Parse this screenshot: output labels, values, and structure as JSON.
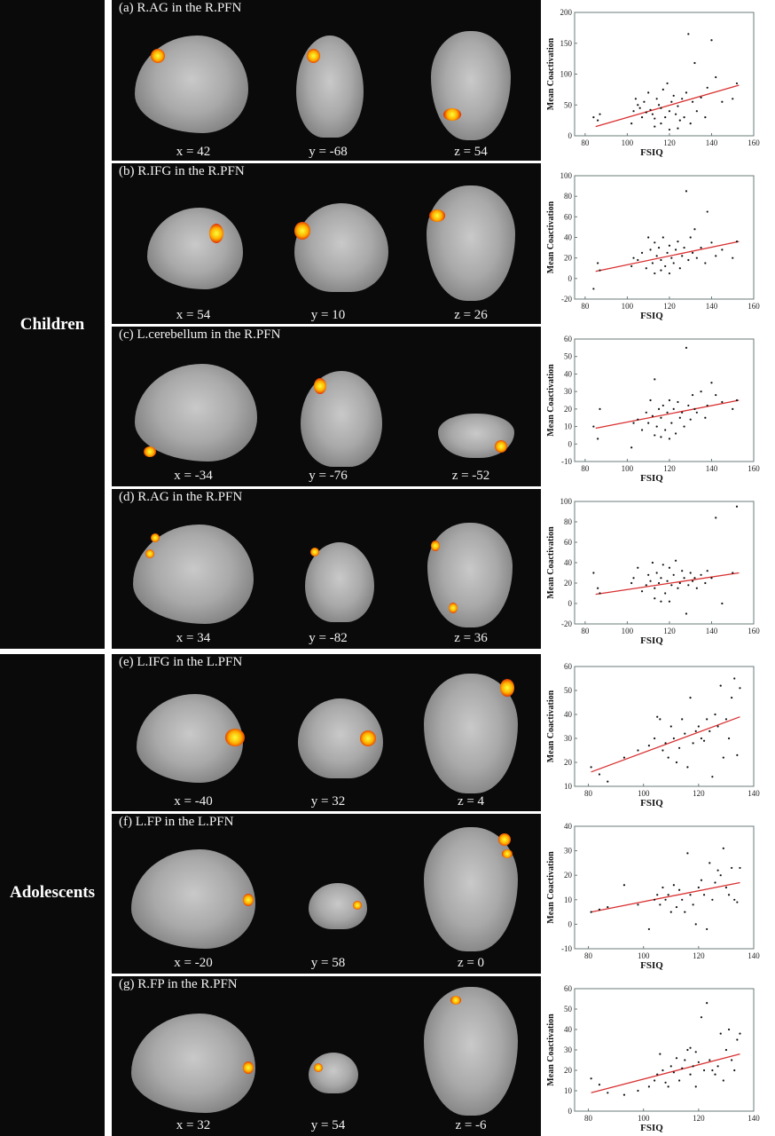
{
  "groups": [
    {
      "label": "Children"
    },
    {
      "label": "Adolescents"
    }
  ],
  "panels": [
    {
      "title": "(a) R.AG in the R.PFN",
      "coords": [
        "x = 42",
        "y = -68",
        "z = 54"
      ]
    },
    {
      "title": "(b) R.IFG in the R.PFN",
      "coords": [
        "x = 54",
        "y = 10",
        "z = 26"
      ]
    },
    {
      "title": "(c) L.cerebellum in the R.PFN",
      "coords": [
        "x = -34",
        "y = -76",
        "z = -52"
      ]
    },
    {
      "title": "(d) R.AG in the R.PFN",
      "coords": [
        "x = 34",
        "y = -82",
        "z = 36"
      ]
    },
    {
      "title": "(e) L.IFG in the L.PFN",
      "coords": [
        "x = -40",
        "y = 32",
        "z = 4"
      ]
    },
    {
      "title": "(f) L.FP in the L.PFN",
      "coords": [
        "x = -20",
        "y = 58",
        "z = 0"
      ]
    },
    {
      "title": "(g) R.FP in the R.PFN",
      "coords": [
        "x = 32",
        "y = 54",
        "z = -6"
      ]
    }
  ],
  "colors": {
    "line": "#d93030",
    "points": "#111111",
    "frame": "#6a7a7a"
  },
  "chart_data": [
    {
      "type": "scatter",
      "xlabel": "FSIQ",
      "ylabel": "Mean Coactivation",
      "xlim": [
        75,
        160
      ],
      "ylim": [
        0,
        200
      ],
      "xticks": [
        80,
        100,
        120,
        140,
        160
      ],
      "yticks": [
        0,
        50,
        100,
        150,
        200
      ],
      "fit": [
        [
          85,
          15
        ],
        [
          153,
          82
        ]
      ],
      "points": [
        [
          84,
          30
        ],
        [
          86,
          25
        ],
        [
          87,
          35
        ],
        [
          102,
          20
        ],
        [
          103,
          40
        ],
        [
          104,
          60
        ],
        [
          105,
          50
        ],
        [
          106,
          45
        ],
        [
          107,
          30
        ],
        [
          108,
          55
        ],
        [
          109,
          38
        ],
        [
          110,
          70
        ],
        [
          111,
          42
        ],
        [
          112,
          35
        ],
        [
          113,
          28
        ],
        [
          114,
          60
        ],
        [
          115,
          50
        ],
        [
          116,
          45
        ],
        [
          117,
          75
        ],
        [
          118,
          30
        ],
        [
          119,
          85
        ],
        [
          120,
          40
        ],
        [
          121,
          55
        ],
        [
          122,
          65
        ],
        [
          123,
          35
        ],
        [
          124,
          48
        ],
        [
          125,
          25
        ],
        [
          126,
          60
        ],
        [
          127,
          30
        ],
        [
          128,
          70
        ],
        [
          129,
          165
        ],
        [
          130,
          20
        ],
        [
          131,
          55
        ],
        [
          132,
          118
        ],
        [
          133,
          40
        ],
        [
          135,
          62
        ],
        [
          137,
          30
        ],
        [
          138,
          78
        ],
        [
          140,
          155
        ],
        [
          142,
          95
        ],
        [
          145,
          55
        ],
        [
          150,
          60
        ],
        [
          152,
          85
        ],
        [
          113,
          15
        ],
        [
          116,
          20
        ],
        [
          120,
          10
        ],
        [
          124,
          12
        ]
      ]
    },
    {
      "type": "scatter",
      "xlabel": "FSIQ",
      "ylabel": "Mean Coactivation",
      "xlim": [
        75,
        160
      ],
      "ylim": [
        -20,
        100
      ],
      "xticks": [
        80,
        100,
        120,
        140,
        160
      ],
      "yticks": [
        -20,
        0,
        20,
        40,
        60,
        80,
        100
      ],
      "fit": [
        [
          85,
          7
        ],
        [
          153,
          36
        ]
      ],
      "points": [
        [
          84,
          -10
        ],
        [
          86,
          15
        ],
        [
          87,
          8
        ],
        [
          102,
          12
        ],
        [
          103,
          20
        ],
        [
          105,
          18
        ],
        [
          107,
          25
        ],
        [
          109,
          10
        ],
        [
          110,
          40
        ],
        [
          111,
          28
        ],
        [
          112,
          15
        ],
        [
          113,
          35
        ],
        [
          114,
          22
        ],
        [
          115,
          30
        ],
        [
          116,
          18
        ],
        [
          117,
          40
        ],
        [
          118,
          12
        ],
        [
          119,
          25
        ],
        [
          120,
          32
        ],
        [
          121,
          20
        ],
        [
          122,
          15
        ],
        [
          123,
          28
        ],
        [
          124,
          36
        ],
        [
          125,
          10
        ],
        [
          126,
          22
        ],
        [
          127,
          30
        ],
        [
          128,
          85
        ],
        [
          129,
          18
        ],
        [
          130,
          40
        ],
        [
          131,
          25
        ],
        [
          132,
          48
        ],
        [
          133,
          20
        ],
        [
          135,
          30
        ],
        [
          137,
          15
        ],
        [
          138,
          65
        ],
        [
          140,
          35
        ],
        [
          142,
          22
        ],
        [
          145,
          28
        ],
        [
          150,
          20
        ],
        [
          152,
          36
        ],
        [
          113,
          5
        ],
        [
          116,
          8
        ],
        [
          120,
          5
        ]
      ]
    },
    {
      "type": "scatter",
      "xlabel": "FSIQ",
      "ylabel": "Mean Coactivation",
      "xlim": [
        75,
        160
      ],
      "ylim": [
        -10,
        60
      ],
      "xticks": [
        80,
        100,
        120,
        140,
        160
      ],
      "yticks": [
        -10,
        0,
        10,
        20,
        30,
        40,
        50,
        60
      ],
      "fit": [
        [
          85,
          9
        ],
        [
          153,
          25
        ]
      ],
      "points": [
        [
          84,
          10
        ],
        [
          86,
          3
        ],
        [
          87,
          20
        ],
        [
          102,
          -2
        ],
        [
          103,
          12
        ],
        [
          105,
          14
        ],
        [
          107,
          8
        ],
        [
          109,
          18
        ],
        [
          110,
          12
        ],
        [
          111,
          25
        ],
        [
          112,
          16
        ],
        [
          113,
          37
        ],
        [
          114,
          10
        ],
        [
          115,
          20
        ],
        [
          116,
          15
        ],
        [
          117,
          22
        ],
        [
          118,
          8
        ],
        [
          119,
          18
        ],
        [
          120,
          25
        ],
        [
          121,
          12
        ],
        [
          122,
          20
        ],
        [
          123,
          6
        ],
        [
          124,
          24
        ],
        [
          125,
          15
        ],
        [
          126,
          18
        ],
        [
          127,
          10
        ],
        [
          128,
          55
        ],
        [
          129,
          22
        ],
        [
          130,
          14
        ],
        [
          131,
          28
        ],
        [
          132,
          20
        ],
        [
          133,
          18
        ],
        [
          135,
          30
        ],
        [
          137,
          15
        ],
        [
          138,
          22
        ],
        [
          140,
          35
        ],
        [
          142,
          28
        ],
        [
          145,
          24
        ],
        [
          150,
          20
        ],
        [
          152,
          25
        ],
        [
          113,
          5
        ],
        [
          116,
          4
        ],
        [
          120,
          3
        ]
      ]
    },
    {
      "type": "scatter",
      "xlabel": "FSIQ",
      "ylabel": "Mean Coactivation",
      "xlim": [
        75,
        160
      ],
      "ylim": [
        -20,
        100
      ],
      "xticks": [
        80,
        100,
        120,
        140,
        160
      ],
      "yticks": [
        -20,
        0,
        20,
        40,
        60,
        80,
        100
      ],
      "fit": [
        [
          85,
          9
        ],
        [
          153,
          30
        ]
      ],
      "points": [
        [
          84,
          30
        ],
        [
          86,
          15
        ],
        [
          87,
          10
        ],
        [
          102,
          20
        ],
        [
          103,
          25
        ],
        [
          105,
          35
        ],
        [
          107,
          12
        ],
        [
          109,
          18
        ],
        [
          110,
          28
        ],
        [
          111,
          22
        ],
        [
          112,
          40
        ],
        [
          113,
          15
        ],
        [
          114,
          30
        ],
        [
          115,
          20
        ],
        [
          116,
          25
        ],
        [
          117,
          38
        ],
        [
          118,
          10
        ],
        [
          119,
          22
        ],
        [
          120,
          35
        ],
        [
          121,
          18
        ],
        [
          122,
          28
        ],
        [
          123,
          42
        ],
        [
          124,
          15
        ],
        [
          125,
          20
        ],
        [
          126,
          32
        ],
        [
          127,
          25
        ],
        [
          128,
          -10
        ],
        [
          129,
          18
        ],
        [
          130,
          30
        ],
        [
          131,
          22
        ],
        [
          132,
          25
        ],
        [
          133,
          15
        ],
        [
          135,
          28
        ],
        [
          137,
          20
        ],
        [
          138,
          32
        ],
        [
          140,
          25
        ],
        [
          142,
          84
        ],
        [
          145,
          0
        ],
        [
          150,
          30
        ],
        [
          152,
          95
        ],
        [
          113,
          5
        ],
        [
          116,
          2
        ],
        [
          120,
          2
        ]
      ]
    },
    {
      "type": "scatter",
      "xlabel": "FSIQ",
      "ylabel": "Mean Coactivation",
      "xlim": [
        75,
        140
      ],
      "ylim": [
        10,
        60
      ],
      "xticks": [
        80,
        100,
        120,
        140
      ],
      "yticks": [
        10,
        20,
        30,
        40,
        50,
        60
      ],
      "fit": [
        [
          81,
          16
        ],
        [
          135,
          39
        ]
      ],
      "points": [
        [
          81,
          18
        ],
        [
          84,
          15
        ],
        [
          87,
          12
        ],
        [
          93,
          22
        ],
        [
          98,
          25
        ],
        [
          102,
          27
        ],
        [
          104,
          30
        ],
        [
          105,
          39
        ],
        [
          106,
          38
        ],
        [
          107,
          25
        ],
        [
          108,
          28
        ],
        [
          109,
          22
        ],
        [
          110,
          35
        ],
        [
          111,
          30
        ],
        [
          112,
          20
        ],
        [
          113,
          26
        ],
        [
          114,
          38
        ],
        [
          115,
          32
        ],
        [
          116,
          18
        ],
        [
          117,
          47
        ],
        [
          118,
          28
        ],
        [
          119,
          33
        ],
        [
          120,
          35
        ],
        [
          121,
          30
        ],
        [
          122,
          29
        ],
        [
          123,
          38
        ],
        [
          124,
          33
        ],
        [
          125,
          14
        ],
        [
          126,
          40
        ],
        [
          127,
          35
        ],
        [
          128,
          52
        ],
        [
          129,
          22
        ],
        [
          130,
          38
        ],
        [
          131,
          30
        ],
        [
          132,
          47
        ],
        [
          133,
          55
        ],
        [
          134,
          23
        ],
        [
          135,
          51
        ]
      ]
    },
    {
      "type": "scatter",
      "xlabel": "FSIQ",
      "ylabel": "Mean Coactivation",
      "xlim": [
        75,
        140
      ],
      "ylim": [
        -10,
        40
      ],
      "xticks": [
        80,
        100,
        120,
        140
      ],
      "yticks": [
        -10,
        0,
        10,
        20,
        30,
        40
      ],
      "fit": [
        [
          81,
          5
        ],
        [
          135,
          17
        ]
      ],
      "points": [
        [
          81,
          5
        ],
        [
          84,
          6
        ],
        [
          87,
          7
        ],
        [
          93,
          16
        ],
        [
          98,
          8
        ],
        [
          102,
          -2
        ],
        [
          104,
          10
        ],
        [
          105,
          12
        ],
        [
          106,
          8
        ],
        [
          107,
          15
        ],
        [
          108,
          10
        ],
        [
          109,
          12
        ],
        [
          110,
          5
        ],
        [
          111,
          16
        ],
        [
          112,
          7
        ],
        [
          113,
          14
        ],
        [
          114,
          10
        ],
        [
          115,
          5
        ],
        [
          116,
          29
        ],
        [
          117,
          12
        ],
        [
          118,
          8
        ],
        [
          119,
          0
        ],
        [
          120,
          15
        ],
        [
          121,
          18
        ],
        [
          122,
          12
        ],
        [
          123,
          -2
        ],
        [
          124,
          25
        ],
        [
          125,
          10
        ],
        [
          126,
          17
        ],
        [
          127,
          22
        ],
        [
          128,
          20
        ],
        [
          129,
          31
        ],
        [
          130,
          15
        ],
        [
          131,
          12
        ],
        [
          132,
          23
        ],
        [
          133,
          10
        ],
        [
          134,
          9
        ],
        [
          135,
          23
        ]
      ]
    },
    {
      "type": "scatter",
      "xlabel": "FSIQ",
      "ylabel": "Mean Coactivation",
      "xlim": [
        75,
        140
      ],
      "ylim": [
        0,
        60
      ],
      "xticks": [
        80,
        100,
        120,
        140
      ],
      "yticks": [
        0,
        10,
        20,
        30,
        40,
        50,
        60
      ],
      "fit": [
        [
          81,
          9
        ],
        [
          135,
          28
        ]
      ],
      "points": [
        [
          81,
          16
        ],
        [
          84,
          13
        ],
        [
          87,
          9
        ],
        [
          93,
          8
        ],
        [
          98,
          10
        ],
        [
          102,
          12
        ],
        [
          104,
          15
        ],
        [
          105,
          18
        ],
        [
          106,
          28
        ],
        [
          107,
          20
        ],
        [
          108,
          14
        ],
        [
          109,
          12
        ],
        [
          110,
          22
        ],
        [
          111,
          19
        ],
        [
          112,
          26
        ],
        [
          113,
          15
        ],
        [
          114,
          21
        ],
        [
          115,
          25
        ],
        [
          116,
          30
        ],
        [
          117,
          18
        ],
        [
          118,
          22
        ],
        [
          119,
          12
        ],
        [
          120,
          24
        ],
        [
          121,
          46
        ],
        [
          122,
          20
        ],
        [
          123,
          53
        ],
        [
          124,
          25
        ],
        [
          125,
          20
        ],
        [
          126,
          18
        ],
        [
          127,
          22
        ],
        [
          128,
          38
        ],
        [
          129,
          15
        ],
        [
          130,
          30
        ],
        [
          131,
          40
        ],
        [
          132,
          25
        ],
        [
          133,
          20
        ],
        [
          134,
          35
        ],
        [
          135,
          38
        ],
        [
          117,
          31
        ],
        [
          119,
          29
        ]
      ]
    }
  ]
}
